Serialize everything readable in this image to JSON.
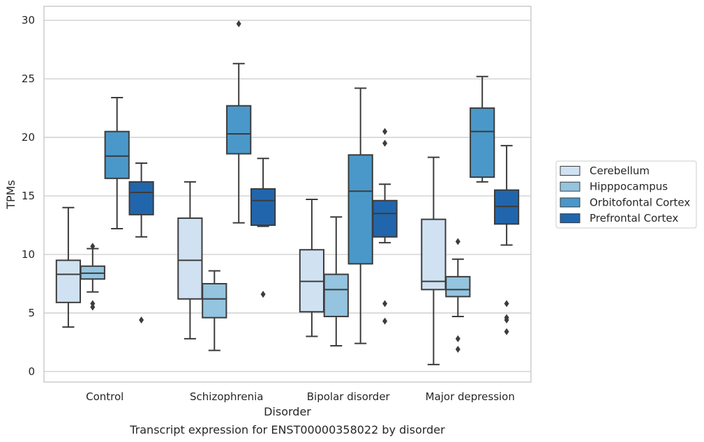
{
  "chart_data": {
    "type": "boxplot",
    "caption": "Transcript expression for ENST00000358022 by disorder",
    "xlabel": "Disorder",
    "ylabel": "TPMs",
    "ylim": [
      -0.9,
      31.2
    ],
    "yticks": [
      0,
      5,
      10,
      15,
      20,
      25,
      30
    ],
    "grid": true,
    "legend_position": "right",
    "categories": [
      "Control",
      "Schizophrenia",
      "Bipolar disorder",
      "Major depression"
    ],
    "series": [
      {
        "name": "Cerebellum",
        "color": "#d0e1f2",
        "boxes": [
          {
            "whisker_low": 3.8,
            "q1": 5.9,
            "median": 8.3,
            "q3": 9.5,
            "whisker_high": 14.0,
            "outliers": []
          },
          {
            "whisker_low": 2.8,
            "q1": 6.2,
            "median": 9.5,
            "q3": 13.1,
            "whisker_high": 16.2,
            "outliers": []
          },
          {
            "whisker_low": 3.0,
            "q1": 5.1,
            "median": 7.7,
            "q3": 10.4,
            "whisker_high": 14.7,
            "outliers": []
          },
          {
            "whisker_low": 0.6,
            "q1": 7.0,
            "median": 7.7,
            "q3": 13.0,
            "whisker_high": 18.3,
            "outliers": []
          }
        ]
      },
      {
        "name": "Hipppocampus",
        "color": "#94c4df",
        "boxes": [
          {
            "whisker_low": 6.8,
            "q1": 7.9,
            "median": 8.4,
            "q3": 9.0,
            "whisker_high": 10.5,
            "outliers": [
              10.7,
              5.8,
              5.5
            ]
          },
          {
            "whisker_low": 1.8,
            "q1": 4.6,
            "median": 6.2,
            "q3": 7.5,
            "whisker_high": 8.6,
            "outliers": []
          },
          {
            "whisker_low": 2.2,
            "q1": 4.7,
            "median": 7.0,
            "q3": 8.3,
            "whisker_high": 13.2,
            "outliers": []
          },
          {
            "whisker_low": 4.7,
            "q1": 6.4,
            "median": 7.0,
            "q3": 8.1,
            "whisker_high": 9.6,
            "outliers": [
              11.1,
              2.8,
              1.9
            ]
          }
        ]
      },
      {
        "name": "Orbitofontal Cortex",
        "color": "#4a98c9",
        "boxes": [
          {
            "whisker_low": 12.2,
            "q1": 16.5,
            "median": 18.4,
            "q3": 20.5,
            "whisker_high": 23.4,
            "outliers": []
          },
          {
            "whisker_low": 12.7,
            "q1": 18.6,
            "median": 20.3,
            "q3": 22.7,
            "whisker_high": 26.3,
            "outliers": [
              29.7
            ]
          },
          {
            "whisker_low": 2.4,
            "q1": 9.2,
            "median": 15.4,
            "q3": 18.5,
            "whisker_high": 24.2,
            "outliers": []
          },
          {
            "whisker_low": 16.2,
            "q1": 16.6,
            "median": 20.5,
            "q3": 22.5,
            "whisker_high": 25.2,
            "outliers": []
          }
        ]
      },
      {
        "name": "Prefrontal Cortex",
        "color": "#2166ac",
        "boxes": [
          {
            "whisker_low": 11.5,
            "q1": 13.4,
            "median": 15.3,
            "q3": 16.2,
            "whisker_high": 17.8,
            "outliers": [
              4.4
            ]
          },
          {
            "whisker_low": 12.4,
            "q1": 12.5,
            "median": 14.6,
            "q3": 15.6,
            "whisker_high": 18.2,
            "outliers": [
              6.6
            ]
          },
          {
            "whisker_low": 11.0,
            "q1": 11.5,
            "median": 13.5,
            "q3": 14.6,
            "whisker_high": 16.0,
            "outliers": [
              20.5,
              19.5,
              5.8,
              4.3
            ]
          },
          {
            "whisker_low": 10.8,
            "q1": 12.6,
            "median": 14.1,
            "q3": 15.5,
            "whisker_high": 19.3,
            "outliers": [
              5.8,
              4.6,
              4.4,
              3.4
            ]
          }
        ]
      }
    ]
  }
}
